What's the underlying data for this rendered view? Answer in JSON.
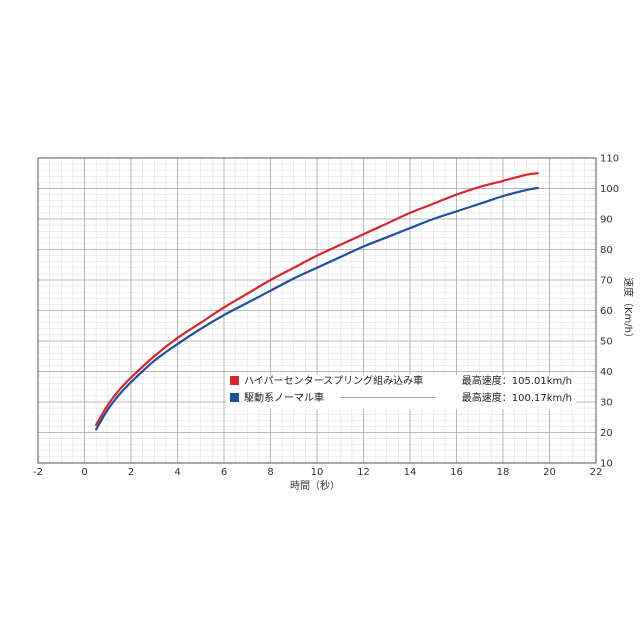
{
  "chart_data": {
    "type": "line",
    "xlabel": "時間（秒）",
    "ylabel": "速度（Km/h）",
    "xlim": [
      -2,
      22
    ],
    "ylim": [
      10,
      110
    ],
    "x_ticks": [
      "-2",
      "0",
      "2",
      "4",
      "6",
      "8",
      "10",
      "12",
      "14",
      "16",
      "18",
      "20",
      "22"
    ],
    "y_ticks": [
      "10",
      "20",
      "30",
      "40",
      "50",
      "60",
      "70",
      "80",
      "90",
      "100",
      "110"
    ],
    "grid": true,
    "legend_position": "lower-right",
    "series": [
      {
        "name": "ハイパーセンタースプリング組み込み車",
        "max_label": "最高速度：105.01km/h",
        "color": "#d9262c",
        "x": [
          0.5,
          1,
          1.5,
          2,
          3,
          4,
          5,
          6,
          7,
          8,
          9,
          10,
          11,
          12,
          13,
          14,
          15,
          16,
          17,
          18,
          19,
          19.5
        ],
        "y": [
          22.5,
          29,
          34,
          38,
          45,
          51,
          56,
          61,
          65.5,
          70,
          74,
          78,
          81.5,
          85,
          88.5,
          92,
          95,
          98,
          100.5,
          102.5,
          104.5,
          105.01
        ]
      },
      {
        "name": "駆動系ノーマル車",
        "max_label": "最高速度：100.17km/h",
        "color": "#1f4ea3",
        "x": [
          0.5,
          1,
          1.5,
          2,
          3,
          4,
          5,
          6,
          7,
          8,
          9,
          10,
          11,
          12,
          13,
          14,
          15,
          16,
          17,
          18,
          19,
          19.5
        ],
        "y": [
          21,
          27.5,
          32.5,
          36.5,
          43.5,
          49,
          54,
          58.5,
          62.5,
          66.5,
          70.5,
          74,
          77.5,
          81,
          84,
          87,
          90,
          92.5,
          95,
          97.5,
          99.5,
          100.17
        ]
      }
    ]
  }
}
